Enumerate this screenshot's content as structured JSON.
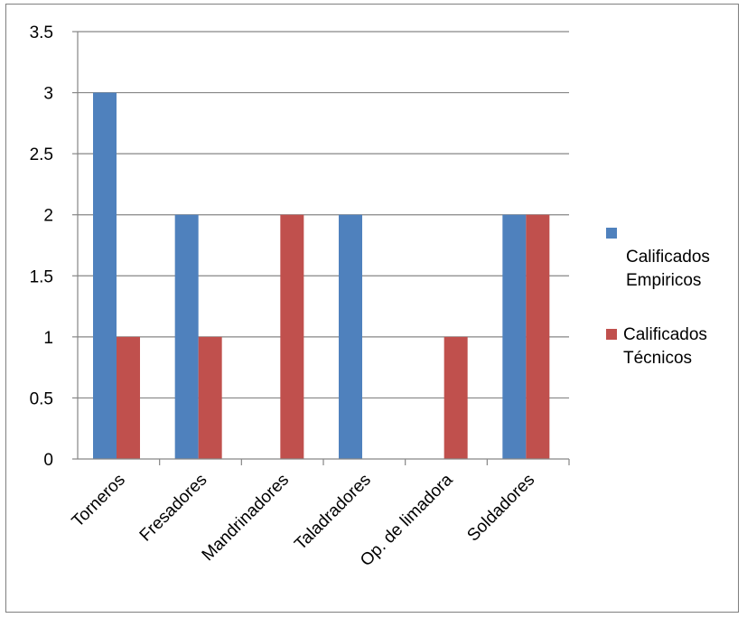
{
  "chart_data": {
    "type": "bar",
    "categories": [
      "Torneros",
      "Fresadores",
      "Mandrinadores",
      "Taladradores",
      "Op. de limadora",
      "Soldadores"
    ],
    "series": [
      {
        "name": "Calificados Empiricos",
        "name_lines": [
          "",
          "Calificados",
          "Empiricos"
        ],
        "color": "#4f81bd",
        "values": [
          3,
          2,
          0,
          2,
          0,
          2
        ]
      },
      {
        "name": "Calificados Técnicos",
        "name_lines": [
          "Calificados",
          "Técnicos"
        ],
        "color": "#c0504d",
        "values": [
          1,
          1,
          2,
          0,
          1,
          2
        ]
      }
    ],
    "ylim": [
      0,
      3.5
    ],
    "yticks": [
      "0",
      "0.5",
      "1",
      "1.5",
      "2",
      "2.5",
      "3",
      "3.5"
    ],
    "grid": true,
    "gridline_color": "#868686",
    "legend": "right"
  }
}
